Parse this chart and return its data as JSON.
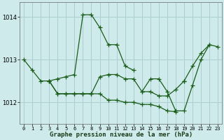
{
  "title": "Graphe pression niveau de la mer (hPa)",
  "bg_color": "#ceeaea",
  "grid_color": "#aacfcf",
  "line_color": "#1a5c1a",
  "marker": "+",
  "markersize": 4,
  "linewidth": 0.9,
  "xlim": [
    -0.5,
    23.5
  ],
  "ylim": [
    1011.5,
    1014.35
  ],
  "yticks": [
    1012,
    1013,
    1014
  ],
  "xticks": [
    0,
    1,
    2,
    3,
    4,
    5,
    6,
    7,
    8,
    9,
    10,
    11,
    12,
    13,
    14,
    15,
    16,
    17,
    18,
    19,
    20,
    21,
    22,
    23
  ],
  "series": [
    {
      "x": [
        0,
        1,
        2,
        3,
        4,
        5,
        6,
        7,
        8,
        9,
        10,
        11,
        12,
        13
      ],
      "y": [
        1013.0,
        1012.75,
        1012.5,
        1012.5,
        1012.55,
        1012.6,
        1012.65,
        1014.05,
        1014.05,
        1013.75,
        1013.35,
        1013.35,
        1012.85,
        1012.75
      ]
    },
    {
      "x": [
        3,
        4,
        5,
        6,
        7,
        8,
        9,
        10,
        11,
        12,
        13,
        14,
        15,
        16,
        17,
        18
      ],
      "y": [
        1012.5,
        1012.2,
        1012.2,
        1012.2,
        1012.2,
        1012.2,
        1012.2,
        1012.05,
        1012.05,
        1012.0,
        1012.0,
        1011.95,
        1011.95,
        1011.9,
        1011.8,
        1011.78
      ]
    },
    {
      "x": [
        3,
        4,
        5,
        6,
        7,
        8,
        9,
        10,
        11,
        12,
        13,
        14,
        15,
        16,
        17,
        18,
        19
      ],
      "y": [
        1012.5,
        1012.2,
        1012.2,
        1012.2,
        1012.2,
        1012.2,
        1012.6,
        1012.65,
        1012.65,
        1012.55,
        1012.55,
        1012.25,
        1012.25,
        1012.15,
        1012.15,
        1012.3,
        1012.5
      ]
    },
    {
      "x": [
        14,
        15,
        16,
        17,
        18,
        19,
        20,
        21,
        22
      ],
      "y": [
        1012.25,
        1012.55,
        1012.55,
        1012.25,
        1011.8,
        1011.8,
        1012.4,
        1013.0,
        1013.35
      ]
    },
    {
      "x": [
        19,
        20,
        21,
        22,
        23
      ],
      "y": [
        1012.5,
        1012.85,
        1013.15,
        1013.35,
        1013.3
      ]
    }
  ]
}
